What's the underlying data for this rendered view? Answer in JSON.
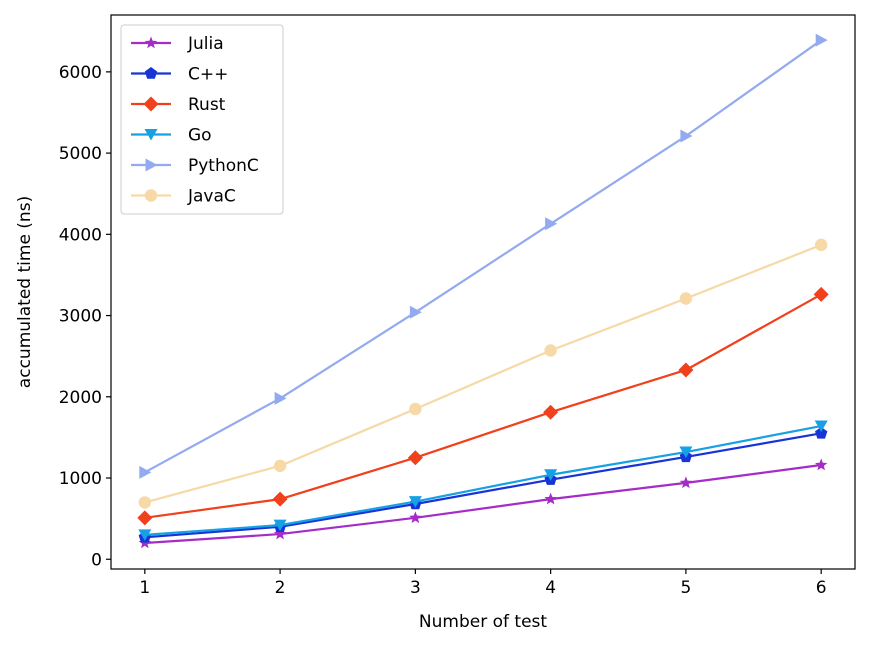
{
  "chart_data": {
    "type": "line",
    "xlabel": "Number of test",
    "ylabel": "accumulated time (ns)",
    "x": [
      1,
      2,
      3,
      4,
      5,
      6
    ],
    "xticks": [
      "1",
      "2",
      "3",
      "4",
      "5",
      "6"
    ],
    "xlim": [
      0.75,
      6.25
    ],
    "ylim": [
      -120,
      6700
    ],
    "yticks": [
      "0",
      "1000",
      "2000",
      "3000",
      "4000",
      "5000",
      "6000"
    ],
    "grid": false,
    "legend_position": "top-left",
    "series": [
      {
        "name": "Julia",
        "color": "#a52cc8",
        "marker": "star",
        "values": [
          200,
          310,
          510,
          740,
          940,
          1160
        ]
      },
      {
        "name": "C++",
        "color": "#1634d8",
        "marker": "pentagon",
        "values": [
          270,
          400,
          680,
          980,
          1260,
          1550
        ]
      },
      {
        "name": "Rust",
        "color": "#f0401c",
        "marker": "diamond",
        "values": [
          510,
          740,
          1250,
          1810,
          2330,
          3260
        ]
      },
      {
        "name": "Go",
        "color": "#17a0e4",
        "marker": "triangle-down",
        "values": [
          300,
          420,
          710,
          1040,
          1320,
          1640
        ]
      },
      {
        "name": "PythonC",
        "color": "#94aaf0",
        "marker": "triangle-right",
        "values": [
          1070,
          1980,
          3040,
          4130,
          5210,
          6390
        ]
      },
      {
        "name": "JavaC",
        "color": "#f6d9a6",
        "marker": "circle",
        "values": [
          700,
          1150,
          1850,
          2570,
          3210,
          3870
        ]
      }
    ]
  }
}
